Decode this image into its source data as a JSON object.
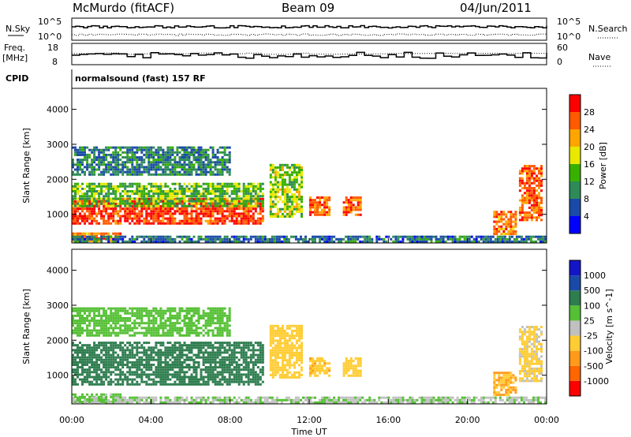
{
  "header": {
    "station": "McMurdo (fitACF)",
    "beam": "Beam 09",
    "date": "04/Jun/2011"
  },
  "status_panels": {
    "noise_left_label": "N.Sky",
    "noise_right_label": "N.Search",
    "noise_ticks": [
      "10^5",
      "10^0"
    ],
    "freq_label_line1": "Freq.",
    "freq_label_line2": "[MHz]",
    "freq_ticks": [
      18,
      8
    ],
    "nave_label": "Nave",
    "nave_ticks": [
      60,
      0
    ],
    "cpid_label": "CPID",
    "cpid_value": "normalsound (fast) 157 RF"
  },
  "colors": {
    "power_scale": [
      "#0000ff",
      "#1a4aa8",
      "#2e8b57",
      "#38b000",
      "#e8e800",
      "#ffa500",
      "#ff5a00",
      "#ff0000"
    ],
    "velocity_scale": [
      "#1515c8",
      "#1a4aa8",
      "#2e7d4f",
      "#55c035",
      "#c0c0c0",
      "#ffcc33",
      "#ff9a1a",
      "#ff6600",
      "#ff0000"
    ]
  },
  "chart_data": [
    {
      "type": "heatmap",
      "name": "Power",
      "xlabel": "",
      "ylabel": "Slant Range [km]",
      "x_range_hours": [
        0,
        24
      ],
      "y_range_km": [
        180,
        4600
      ],
      "x_ticks": [
        "00:00",
        "04:00",
        "08:00",
        "12:00",
        "16:00",
        "20:00",
        "00:00"
      ],
      "y_ticks": [
        1000,
        2000,
        3000,
        4000
      ],
      "colorbar": {
        "label": "Power [dB]",
        "ticks": [
          4,
          8,
          12,
          16,
          20,
          24,
          28
        ],
        "range": [
          0,
          32
        ]
      },
      "regions": [
        {
          "t0": 0.0,
          "t1": 9.6,
          "r0": 700,
          "r1": 1450,
          "level": 28
        },
        {
          "t0": 0.0,
          "t1": 9.6,
          "r0": 1200,
          "r1": 1900,
          "level": 14
        },
        {
          "t0": 0.0,
          "t1": 8.0,
          "r0": 2100,
          "r1": 2900,
          "level": 9
        },
        {
          "t0": 0.0,
          "t1": 2.5,
          "r0": 200,
          "r1": 480,
          "level": 24
        },
        {
          "t0": 10.0,
          "t1": 11.6,
          "r0": 900,
          "r1": 2400,
          "level": 16
        },
        {
          "t0": 12.0,
          "t1": 13.0,
          "r0": 950,
          "r1": 1450,
          "level": 26
        },
        {
          "t0": 13.7,
          "t1": 14.6,
          "r0": 950,
          "r1": 1450,
          "level": 26
        },
        {
          "t0": 21.3,
          "t1": 22.4,
          "r0": 400,
          "r1": 1100,
          "level": 24
        },
        {
          "t0": 22.6,
          "t1": 23.8,
          "r0": 800,
          "r1": 2400,
          "level": 26
        },
        {
          "t0": 0.0,
          "t1": 24.0,
          "r0": 180,
          "r1": 360,
          "level": 8
        }
      ]
    },
    {
      "type": "heatmap",
      "name": "Velocity",
      "xlabel": "Time UT",
      "ylabel": "Slant Range [km]",
      "x_range_hours": [
        0,
        24
      ],
      "y_range_km": [
        180,
        4600
      ],
      "x_ticks": [
        "00:00",
        "04:00",
        "08:00",
        "12:00",
        "16:00",
        "20:00",
        "00:00"
      ],
      "y_ticks": [
        1000,
        2000,
        3000,
        4000
      ],
      "colorbar": {
        "label": "Velocity [m s^-1]",
        "ticks": [
          1000,
          500,
          100,
          25,
          -25,
          -100,
          -500,
          -1000
        ]
      },
      "regions": [
        {
          "t0": 0.0,
          "t1": 9.6,
          "r0": 700,
          "r1": 1900,
          "level": 200
        },
        {
          "t0": 0.0,
          "t1": 8.0,
          "r0": 2100,
          "r1": 2900,
          "level": 60
        },
        {
          "t0": 0.0,
          "t1": 2.5,
          "r0": 200,
          "r1": 480,
          "level": 50
        },
        {
          "t0": 10.0,
          "t1": 11.6,
          "r0": 900,
          "r1": 2400,
          "level": -60
        },
        {
          "t0": 12.0,
          "t1": 13.0,
          "r0": 950,
          "r1": 1450,
          "level": -80
        },
        {
          "t0": 13.7,
          "t1": 14.6,
          "r0": 950,
          "r1": 1450,
          "level": -60
        },
        {
          "t0": 21.3,
          "t1": 22.4,
          "r0": 400,
          "r1": 1100,
          "level": -100
        },
        {
          "t0": 22.6,
          "t1": 23.8,
          "r0": 800,
          "r1": 2400,
          "level": -40
        },
        {
          "t0": 0.0,
          "t1": 24.0,
          "r0": 180,
          "r1": 360,
          "level": 20
        }
      ]
    }
  ]
}
